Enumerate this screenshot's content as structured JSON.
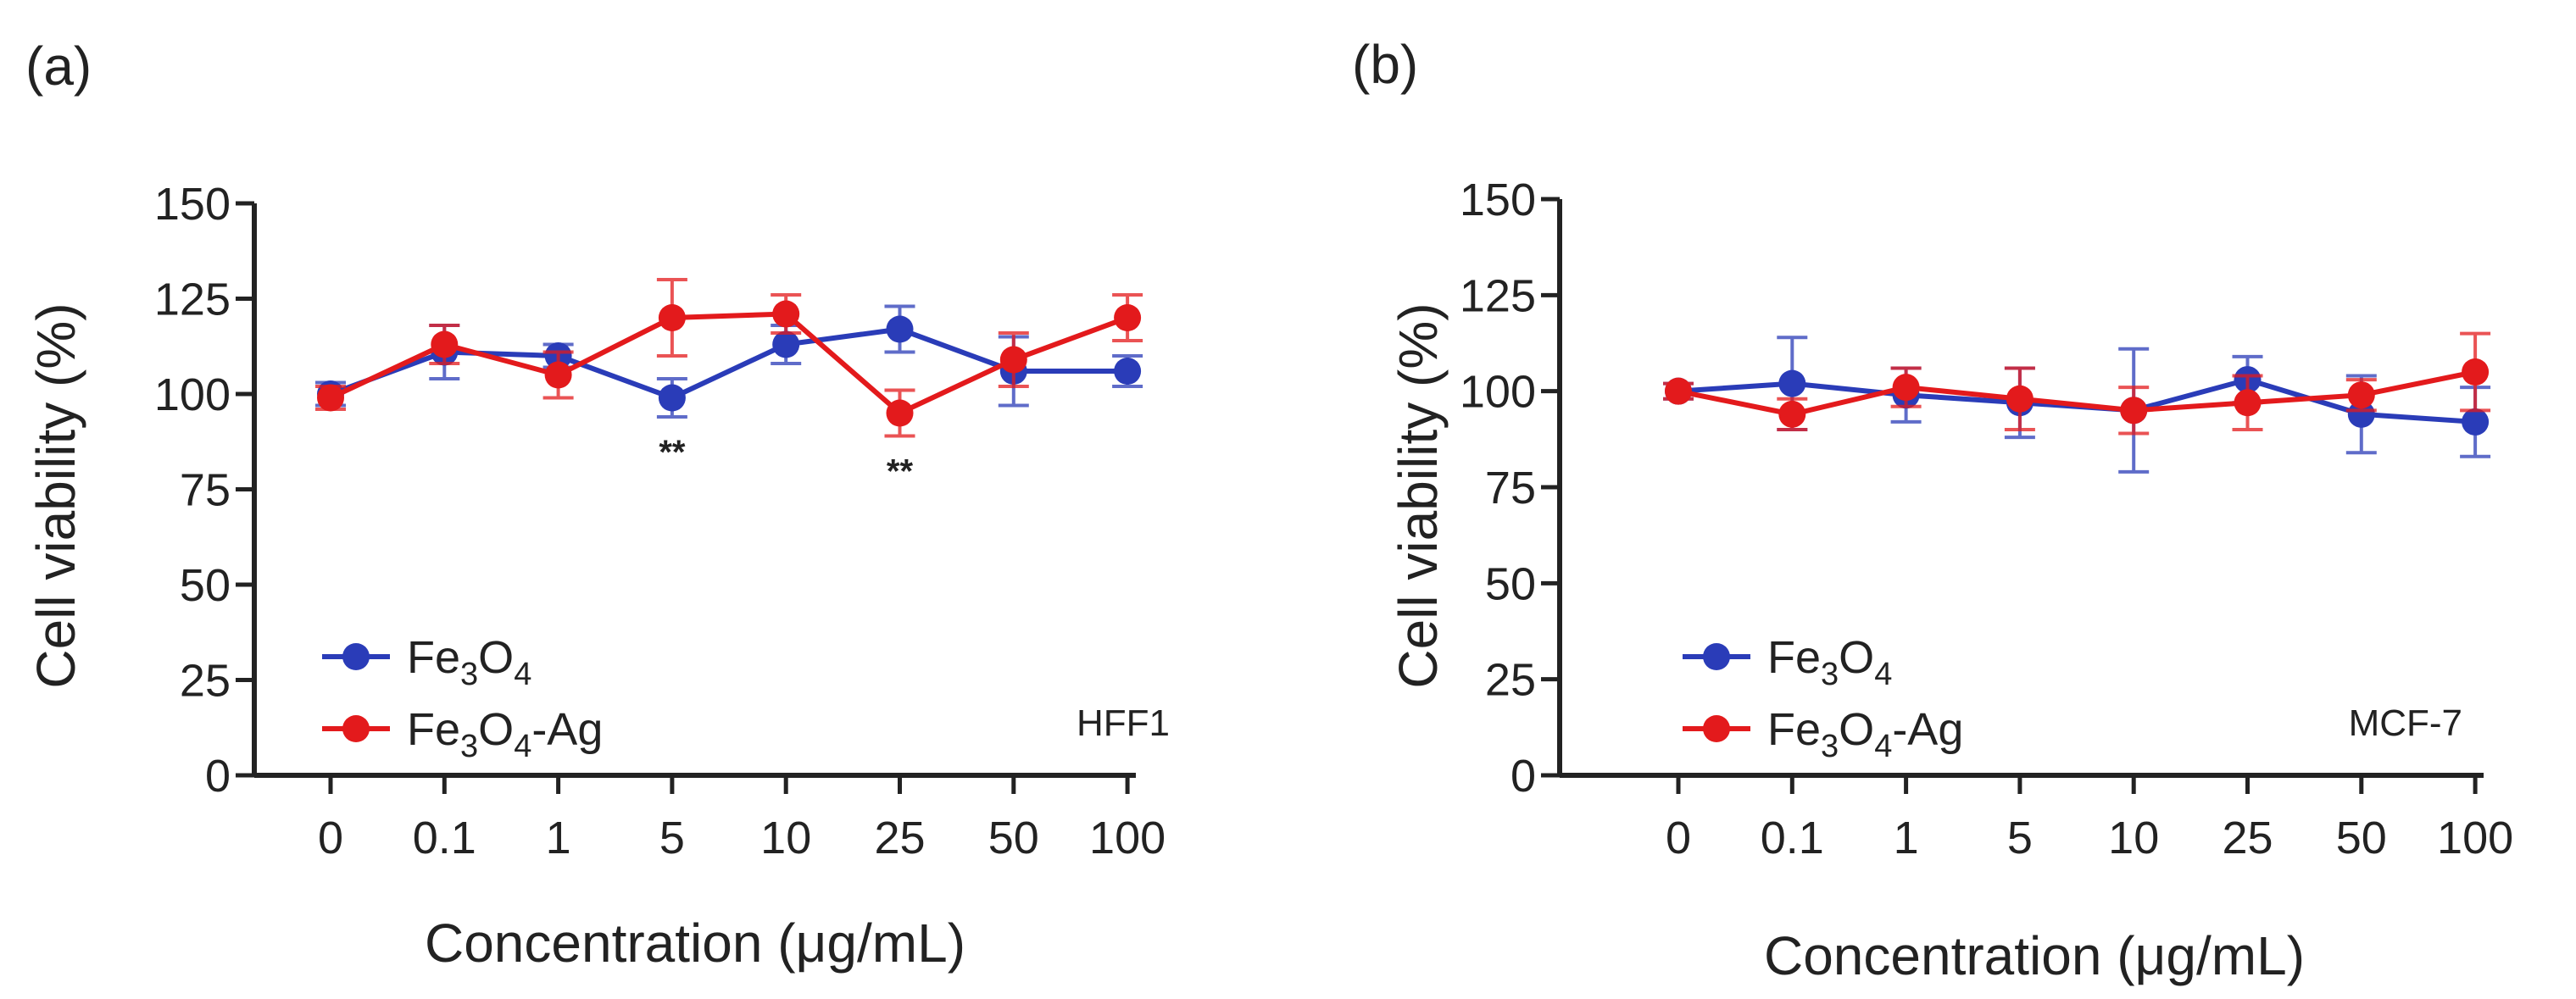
{
  "chart_data": [
    {
      "type": "line",
      "panel_label": "(a)",
      "cell_line": "HFF1",
      "categories": [
        "0",
        "0.1",
        "1",
        "5",
        "10",
        "25",
        "50",
        "100"
      ],
      "xlabel": "Concentration (μg/mL)",
      "ylabel": "Cell viability (%)",
      "ylim": [
        0,
        150
      ],
      "yticks": [
        "0",
        "25",
        "50",
        "75",
        "100",
        "125",
        "150"
      ],
      "legend_position": "bottom-left",
      "grid": false,
      "series": [
        {
          "name": "Fe3O4",
          "name_base": "Fe",
          "name_sub1": "3",
          "name_mid": "O",
          "name_sub2": "4",
          "name_suffix": "",
          "color": "#2a3cb8",
          "values": [
            100,
            111,
            110,
            99,
            113,
            117,
            106,
            106
          ],
          "errors": [
            3,
            7,
            3,
            5,
            5,
            6,
            9,
            4
          ]
        },
        {
          "name": "Fe3O4-Ag",
          "name_base": "Fe",
          "name_sub1": "3",
          "name_mid": "O",
          "name_sub2": "4",
          "name_suffix": "-Ag",
          "color": "#e31a1c",
          "values": [
            99,
            113,
            105,
            120,
            121,
            95,
            109,
            120
          ],
          "errors": [
            3,
            5,
            6,
            10,
            5,
            6,
            7,
            6
          ]
        }
      ],
      "annotations": [
        {
          "category": "5",
          "text": "**"
        },
        {
          "category": "25",
          "text": "**"
        }
      ]
    },
    {
      "type": "line",
      "panel_label": "(b)",
      "cell_line": "MCF-7",
      "categories": [
        "0",
        "0.1",
        "1",
        "5",
        "10",
        "25",
        "50",
        "100"
      ],
      "xlabel": "Concentration (μg/mL)",
      "ylabel": "Cell viability (%)",
      "ylim": [
        0,
        150
      ],
      "yticks": [
        "0",
        "25",
        "50",
        "75",
        "100",
        "125",
        "150"
      ],
      "legend_position": "bottom-left",
      "grid": false,
      "series": [
        {
          "name": "Fe3O4",
          "name_base": "Fe",
          "name_sub1": "3",
          "name_mid": "O",
          "name_sub2": "4",
          "name_suffix": "",
          "color": "#2a3cb8",
          "values": [
            100,
            102,
            99,
            97,
            95,
            103,
            94,
            92
          ],
          "errors": [
            2,
            12,
            7,
            9,
            16,
            6,
            10,
            9
          ]
        },
        {
          "name": "Fe3O4-Ag",
          "name_base": "Fe",
          "name_sub1": "3",
          "name_mid": "O",
          "name_sub2": "4",
          "name_suffix": "-Ag",
          "color": "#e31a1c",
          "values": [
            100,
            94,
            101,
            98,
            95,
            97,
            99,
            105
          ],
          "errors": [
            2,
            4,
            5,
            8,
            6,
            7,
            4,
            10
          ]
        }
      ],
      "annotations": []
    }
  ]
}
